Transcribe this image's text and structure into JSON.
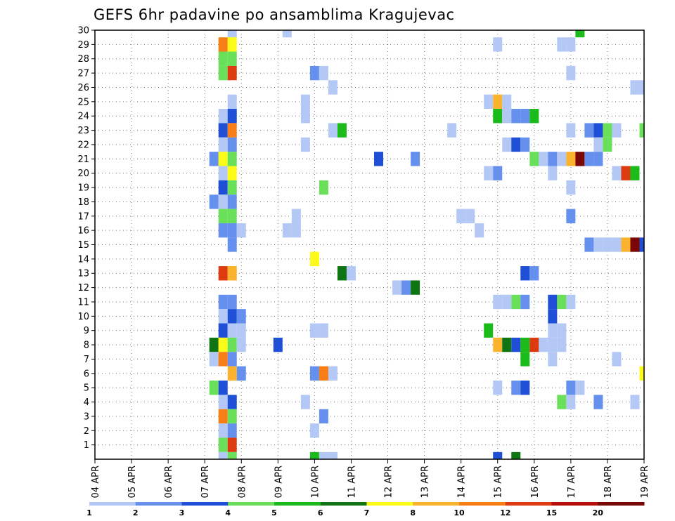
{
  "chart_data": {
    "type": "heatmap",
    "title": "GEFS 6hr padavine po ansamblima Kragujevac",
    "xlabel": "",
    "ylabel": "",
    "x_tick_labels": [
      "04 APR",
      "05 APR",
      "06 APR",
      "07 APR",
      "08 APR",
      "09 APR",
      "10 APR",
      "11 APR",
      "12 APR",
      "13 APR",
      "14 APR",
      "15 APR",
      "16 APR",
      "17 APR",
      "18 APR",
      "19 APR"
    ],
    "y_tick_labels": [
      "1",
      "2",
      "3",
      "4",
      "5",
      "6",
      "7",
      "8",
      "9",
      "10",
      "11",
      "12",
      "13",
      "14",
      "15",
      "16",
      "17",
      "18",
      "19",
      "20",
      "21",
      "22",
      "23",
      "24",
      "25",
      "26",
      "27",
      "28",
      "29",
      "30"
    ],
    "y_range": [
      0,
      30
    ],
    "time_steps_per_day": 4,
    "grid": true,
    "colorbar": {
      "position": "bottom",
      "colors": [
        "#b4c8f5",
        "#6690ee",
        "#1e4fd6",
        "#6ae05a",
        "#1cbb1c",
        "#0f7412",
        "#fbfa18",
        "#fbb22c",
        "#f77e14",
        "#de3a10",
        "#b80e0a",
        "#7a0606"
      ],
      "tick_labels": [
        "1",
        "2",
        "3",
        "4",
        "5",
        "6",
        "7",
        "8",
        "10",
        "12",
        "15",
        "20"
      ]
    },
    "cells": [
      [
        30,
        "07/18",
        1
      ],
      [
        30,
        "09/06",
        1
      ],
      [
        30,
        "17/06",
        5
      ],
      [
        29,
        "07/12",
        9
      ],
      [
        29,
        "07/18",
        7
      ],
      [
        29,
        "15/00",
        1
      ],
      [
        29,
        "16/18",
        1
      ],
      [
        29,
        "17/00",
        1
      ],
      [
        28,
        "07/12",
        4
      ],
      [
        28,
        "07/18",
        4
      ],
      [
        27,
        "07/12",
        4
      ],
      [
        27,
        "07/18",
        10
      ],
      [
        27,
        "10/00",
        2
      ],
      [
        27,
        "10/06",
        1
      ],
      [
        27,
        "17/00",
        1
      ],
      [
        26,
        "10/12",
        1
      ],
      [
        26,
        "18/18",
        1
      ],
      [
        26,
        "19/00",
        1
      ],
      [
        25,
        "07/18",
        1
      ],
      [
        25,
        "09/18",
        1
      ],
      [
        25,
        "14/18",
        1
      ],
      [
        25,
        "15/00",
        8
      ],
      [
        25,
        "15/06",
        1
      ],
      [
        24,
        "07/12",
        1
      ],
      [
        24,
        "07/18",
        3
      ],
      [
        24,
        "09/18",
        1
      ],
      [
        24,
        "15/00",
        5
      ],
      [
        24,
        "15/06",
        1
      ],
      [
        24,
        "15/12",
        2
      ],
      [
        24,
        "15/18",
        2
      ],
      [
        24,
        "16/00",
        5
      ],
      [
        23,
        "07/12",
        3
      ],
      [
        23,
        "07/18",
        9
      ],
      [
        23,
        "10/12",
        1
      ],
      [
        23,
        "10/18",
        5
      ],
      [
        23,
        "13/18",
        1
      ],
      [
        23,
        "17/00",
        1
      ],
      [
        23,
        "17/12",
        2
      ],
      [
        23,
        "17/18",
        3
      ],
      [
        23,
        "18/00",
        4
      ],
      [
        23,
        "18/06",
        1
      ],
      [
        23,
        "19/00",
        4
      ],
      [
        22,
        "07/12",
        1
      ],
      [
        22,
        "07/18",
        2
      ],
      [
        22,
        "09/18",
        1
      ],
      [
        22,
        "15/06",
        1
      ],
      [
        22,
        "15/12",
        3
      ],
      [
        22,
        "15/18",
        2
      ],
      [
        22,
        "17/18",
        1
      ],
      [
        22,
        "18/00",
        4
      ],
      [
        21,
        "07/06",
        2
      ],
      [
        21,
        "07/12",
        7
      ],
      [
        21,
        "07/18",
        4
      ],
      [
        21,
        "11/18",
        3
      ],
      [
        21,
        "12/18",
        2
      ],
      [
        21,
        "16/00",
        4
      ],
      [
        21,
        "16/06",
        1
      ],
      [
        21,
        "16/12",
        2
      ],
      [
        21,
        "16/18",
        1
      ],
      [
        21,
        "17/00",
        8
      ],
      [
        21,
        "17/06",
        12
      ],
      [
        21,
        "17/12",
        2
      ],
      [
        21,
        "17/18",
        2
      ],
      [
        20,
        "07/12",
        1
      ],
      [
        20,
        "07/18",
        7
      ],
      [
        20,
        "14/18",
        1
      ],
      [
        20,
        "15/00",
        2
      ],
      [
        20,
        "16/12",
        1
      ],
      [
        20,
        "18/06",
        1
      ],
      [
        20,
        "18/12",
        10
      ],
      [
        20,
        "18/18",
        5
      ],
      [
        19,
        "07/12",
        3
      ],
      [
        19,
        "07/18",
        4
      ],
      [
        19,
        "10/06",
        4
      ],
      [
        19,
        "17/00",
        1
      ],
      [
        18,
        "07/06",
        2
      ],
      [
        18,
        "07/12",
        1
      ],
      [
        18,
        "07/18",
        2
      ],
      [
        17,
        "07/12",
        4
      ],
      [
        17,
        "07/18",
        4
      ],
      [
        17,
        "09/12",
        1
      ],
      [
        17,
        "14/00",
        1
      ],
      [
        17,
        "14/06",
        1
      ],
      [
        17,
        "17/00",
        2
      ],
      [
        16,
        "07/12",
        2
      ],
      [
        16,
        "07/18",
        2
      ],
      [
        16,
        "08/00",
        1
      ],
      [
        16,
        "09/06",
        1
      ],
      [
        16,
        "09/12",
        1
      ],
      [
        16,
        "14/12",
        1
      ],
      [
        15,
        "07/18",
        2
      ],
      [
        15,
        "17/12",
        2
      ],
      [
        15,
        "17/18",
        1
      ],
      [
        15,
        "18/00",
        1
      ],
      [
        15,
        "18/06",
        1
      ],
      [
        15,
        "18/12",
        8
      ],
      [
        15,
        "18/18",
        12
      ],
      [
        15,
        "19/00",
        3
      ],
      [
        14,
        "10/00",
        7
      ],
      [
        13,
        "07/12",
        10
      ],
      [
        13,
        "07/18",
        8
      ],
      [
        13,
        "10/18",
        6
      ],
      [
        13,
        "11/00",
        1
      ],
      [
        13,
        "15/18",
        3
      ],
      [
        13,
        "16/00",
        2
      ],
      [
        12,
        "12/06",
        1
      ],
      [
        12,
        "12/12",
        2
      ],
      [
        12,
        "12/18",
        6
      ],
      [
        11,
        "07/12",
        2
      ],
      [
        11,
        "07/18",
        2
      ],
      [
        11,
        "15/00",
        1
      ],
      [
        11,
        "15/06",
        1
      ],
      [
        11,
        "15/12",
        4
      ],
      [
        11,
        "15/18",
        2
      ],
      [
        11,
        "16/12",
        3
      ],
      [
        11,
        "16/18",
        4
      ],
      [
        11,
        "17/00",
        1
      ],
      [
        10,
        "07/12",
        1
      ],
      [
        10,
        "07/18",
        3
      ],
      [
        10,
        "08/00",
        2
      ],
      [
        10,
        "16/12",
        3
      ],
      [
        9,
        "07/12",
        3
      ],
      [
        9,
        "07/18",
        1
      ],
      [
        9,
        "08/00",
        1
      ],
      [
        9,
        "10/00",
        1
      ],
      [
        9,
        "10/06",
        1
      ],
      [
        9,
        "14/18",
        5
      ],
      [
        9,
        "16/12",
        1
      ],
      [
        9,
        "16/18",
        1
      ],
      [
        8,
        "07/06",
        6
      ],
      [
        8,
        "07/12",
        7
      ],
      [
        8,
        "07/18",
        4
      ],
      [
        8,
        "08/00",
        1
      ],
      [
        8,
        "09/00",
        3
      ],
      [
        8,
        "15/00",
        8
      ],
      [
        8,
        "15/06",
        6
      ],
      [
        8,
        "15/12",
        3
      ],
      [
        8,
        "15/18",
        5
      ],
      [
        8,
        "16/00",
        10
      ],
      [
        8,
        "16/06",
        1
      ],
      [
        8,
        "16/12",
        1
      ],
      [
        8,
        "16/18",
        1
      ],
      [
        7,
        "07/06",
        1
      ],
      [
        7,
        "07/12",
        9
      ],
      [
        7,
        "07/18",
        2
      ],
      [
        7,
        "15/18",
        5
      ],
      [
        7,
        "16/12",
        1
      ],
      [
        7,
        "18/06",
        1
      ],
      [
        6,
        "07/18",
        8
      ],
      [
        6,
        "08/00",
        2
      ],
      [
        6,
        "10/00",
        2
      ],
      [
        6,
        "10/06",
        9
      ],
      [
        6,
        "10/12",
        1
      ],
      [
        6,
        "19/00",
        7
      ],
      [
        5,
        "07/06",
        4
      ],
      [
        5,
        "07/12",
        3
      ],
      [
        5,
        "15/00",
        1
      ],
      [
        5,
        "15/12",
        2
      ],
      [
        5,
        "15/18",
        3
      ],
      [
        5,
        "17/00",
        2
      ],
      [
        5,
        "17/06",
        1
      ],
      [
        4,
        "07/12",
        1
      ],
      [
        4,
        "07/18",
        3
      ],
      [
        4,
        "09/18",
        1
      ],
      [
        4,
        "16/18",
        4
      ],
      [
        4,
        "17/00",
        1
      ],
      [
        4,
        "17/18",
        2
      ],
      [
        4,
        "18/18",
        1
      ],
      [
        3,
        "07/12",
        9
      ],
      [
        3,
        "07/18",
        4
      ],
      [
        3,
        "10/06",
        2
      ],
      [
        2,
        "07/12",
        1
      ],
      [
        2,
        "07/18",
        2
      ],
      [
        2,
        "10/00",
        1
      ],
      [
        1,
        "07/12",
        4
      ],
      [
        1,
        "07/18",
        10
      ],
      [
        0,
        "07/12",
        1
      ],
      [
        0,
        "07/18",
        4
      ],
      [
        0,
        "10/00",
        5
      ],
      [
        0,
        "10/06",
        1
      ],
      [
        0,
        "10/12",
        1
      ],
      [
        0,
        "15/00",
        3
      ],
      [
        0,
        "15/12",
        6
      ]
    ]
  }
}
